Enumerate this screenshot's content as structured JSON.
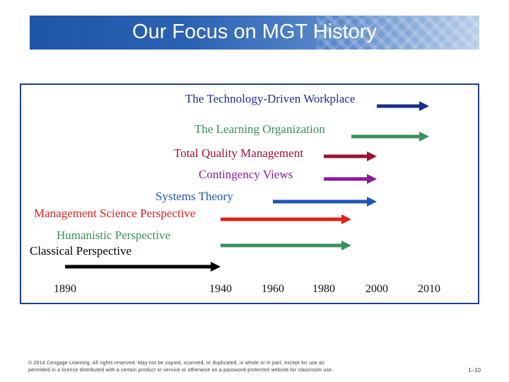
{
  "title": "Our Focus on MGT History",
  "colors": {
    "title_bar": "#2a62b4",
    "diagram_border": "#1f3f8f"
  },
  "timeline": {
    "ticks": [
      "1890",
      "1940",
      "1960",
      "1980",
      "2000",
      "2010"
    ],
    "items": [
      {
        "label": "The Technology-Driven Workplace",
        "color": "#1c2f8c",
        "start": 2000,
        "end": 2010
      },
      {
        "label": "The Learning Organization",
        "color": "#3a8f5e",
        "start": 1990,
        "end": 2010
      },
      {
        "label": "Total Quality Management",
        "color": "#9a1234",
        "start": 1980,
        "end": 2000
      },
      {
        "label": "Contingency Views",
        "color": "#8a1a9a",
        "start": 1980,
        "end": 2000
      },
      {
        "label": "Systems Theory",
        "color": "#1f55b8",
        "start": 1960,
        "end": 2000
      },
      {
        "label": "Management Science Perspective",
        "color": "#e0201c",
        "start": 1940,
        "end": 1990
      },
      {
        "label": "Humanistic Perspective",
        "color": "#3a8f5e",
        "start": 1940,
        "end": 1990
      },
      {
        "label": "Classical Perspective",
        "color": "#000000",
        "start": 1890,
        "end": 1940
      }
    ]
  },
  "footer": {
    "copyright_line1": "© 2014 Cengage Learning. All rights reserved. May not be copied, scanned, or duplicated, in whole or in part, except for use as",
    "copyright_line2": "permitted in a license distributed with a certain product or service or otherwise on a password-protected website for classroom use.",
    "page_number": "1–10"
  }
}
